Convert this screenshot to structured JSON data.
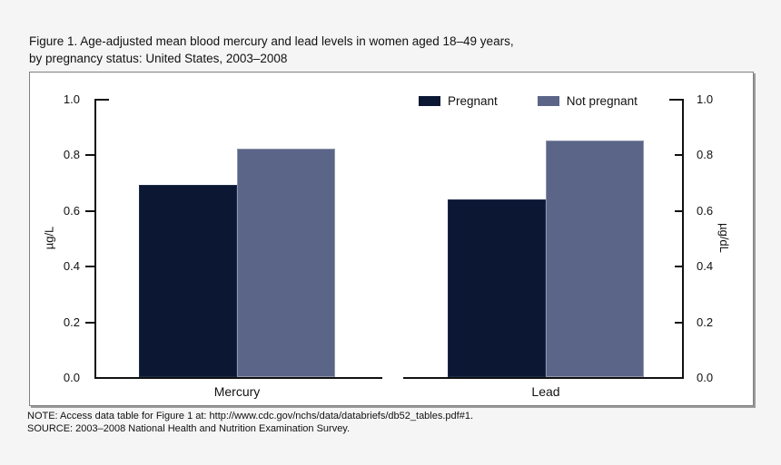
{
  "page": {
    "background": "#f5f5f6",
    "box_background": "#ffffff",
    "box_border": "#7f7f7f"
  },
  "title": {
    "line1": "Figure 1. Age-adjusted mean blood mercury and lead levels in women aged 18–49 years,",
    "line2": "by pregnancy status: United States, 2003–2008"
  },
  "chart_data": {
    "type": "bar",
    "categories": [
      "Mercury",
      "Lead"
    ],
    "series": [
      {
        "name": "Pregnant",
        "color": "#0b1733",
        "values": [
          0.69,
          0.64
        ]
      },
      {
        "name": "Not pregnant",
        "color": "#5a6588",
        "values": [
          0.82,
          0.85
        ]
      }
    ],
    "left_axis": {
      "label": "µg/L",
      "ticks": [
        "0.0",
        "0.2",
        "0.4",
        "0.6",
        "0.8",
        "1.0"
      ],
      "range": [
        0,
        1.0
      ]
    },
    "right_axis": {
      "label": "µg/dL",
      "ticks": [
        "0.0",
        "0.2",
        "0.4",
        "0.6",
        "0.8",
        "1.0"
      ],
      "range": [
        0,
        1.0
      ]
    },
    "legend_position": "top-right-inside",
    "grid": false
  },
  "notes": {
    "note": "NOTE: Access data table for Figure 1 at: http://www.cdc.gov/nchs/data/databriefs/db52_tables.pdf#1.",
    "source": "SOURCE: 2003–2008 National Health and Nutrition Examination Survey."
  }
}
